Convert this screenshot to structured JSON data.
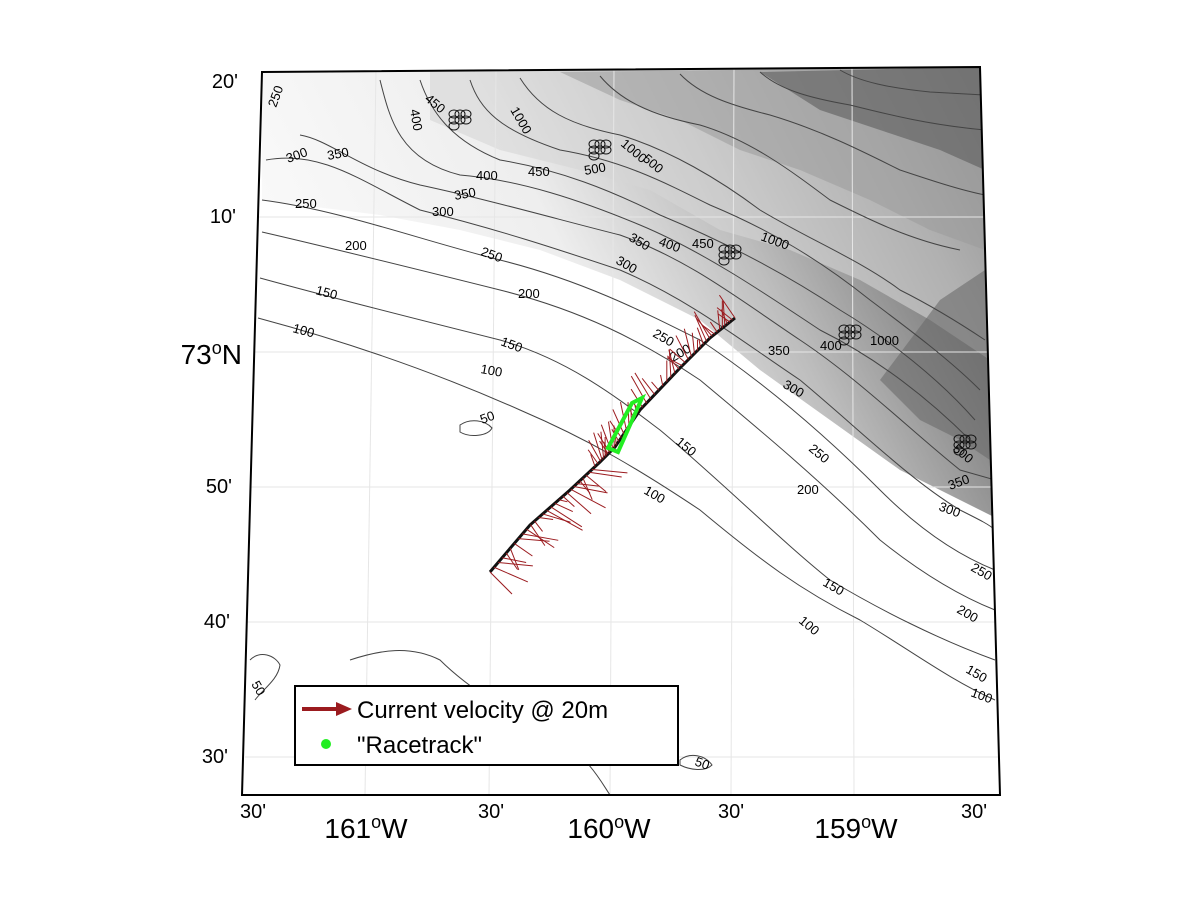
{
  "map": {
    "lat_labels": [
      {
        "id": "lat-20",
        "text": "20'"
      },
      {
        "id": "lat-10",
        "text": "10'"
      },
      {
        "id": "lat-73",
        "base": "73",
        "sup": "o",
        "suffix": "N"
      },
      {
        "id": "lat-50",
        "text": "50'"
      },
      {
        "id": "lat-40",
        "text": "40'"
      },
      {
        "id": "lat-30",
        "text": "30'"
      }
    ],
    "lon_labels": [
      {
        "id": "lon-161-30",
        "text": "30'"
      },
      {
        "id": "lon-161",
        "base": "161",
        "sup": "o",
        "suffix": "W"
      },
      {
        "id": "lon-160-30",
        "text": "30'"
      },
      {
        "id": "lon-160",
        "base": "160",
        "sup": "o",
        "suffix": "W"
      },
      {
        "id": "lon-159-30",
        "text": "30'"
      },
      {
        "id": "lon-159",
        "base": "159",
        "sup": "o",
        "suffix": "W"
      },
      {
        "id": "lon-158-30",
        "text": "30'"
      }
    ],
    "contour_labels": [
      "50",
      "100",
      "150",
      "200",
      "250",
      "300",
      "350",
      "400",
      "450",
      "500",
      "1000"
    ],
    "colors": {
      "velocity_arrow": "#9b1b1f",
      "racetrack": "#22ee22",
      "ship_track": "#111111",
      "contour": "#444444"
    }
  },
  "legend": {
    "items": [
      {
        "label": "Current velocity @ 20m",
        "symbol": "arrow"
      },
      {
        "label": "\"Racetrack\"",
        "symbol": "dot"
      }
    ]
  }
}
